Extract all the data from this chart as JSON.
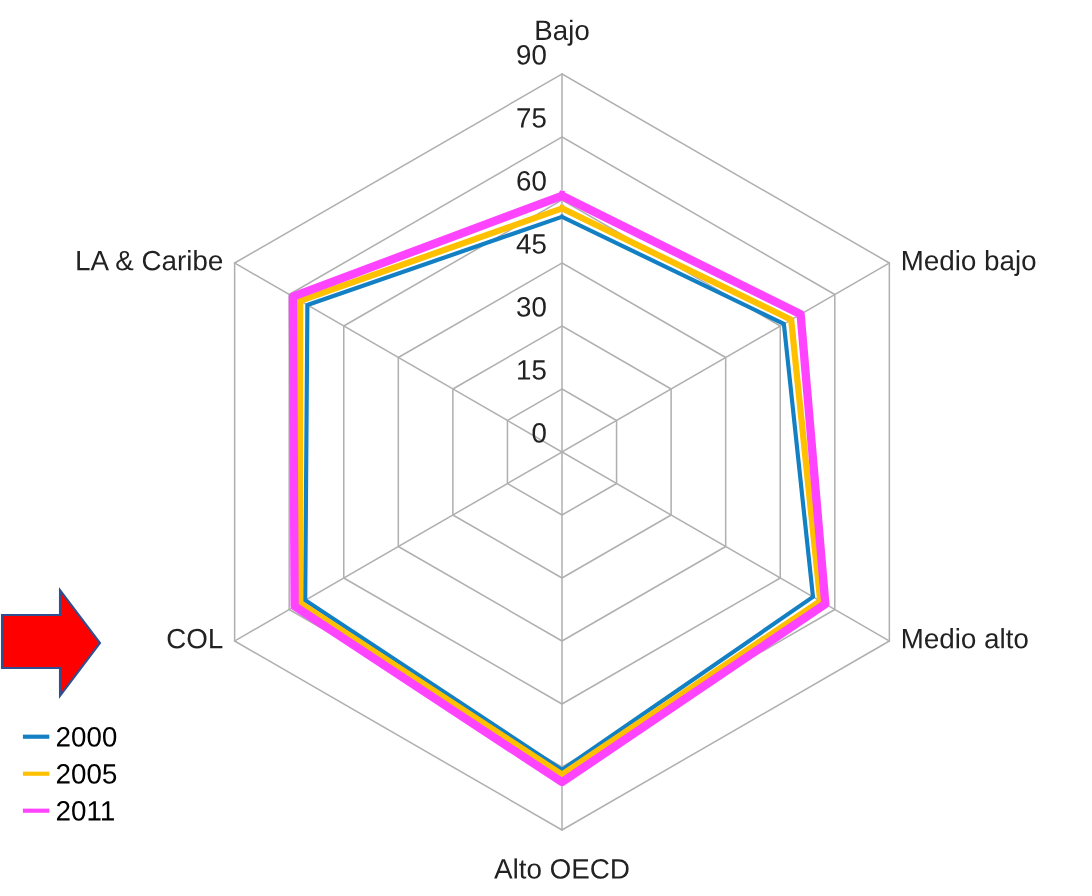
{
  "chart_data": {
    "type": "radar",
    "categories": [
      "Bajo",
      "Medio bajo",
      "Medio alto",
      "Alto OECD",
      "COL",
      "LA & Caribe"
    ],
    "ylim": [
      0,
      90
    ],
    "yticks": [
      0,
      15,
      30,
      45,
      60,
      75,
      90
    ],
    "grid": true,
    "legend": "bottom left",
    "marker": "none",
    "line_style": "solid",
    "series": [
      {
        "name": "2000",
        "color": "#1380c4",
        "values": [
          56,
          61,
          69,
          75.7,
          70.6,
          70
        ]
      },
      {
        "name": "2005",
        "color": "#ffc000",
        "values": [
          58,
          63,
          71,
          76.8,
          72,
          72
        ]
      },
      {
        "name": "2011",
        "color": "#ff44ff",
        "values": [
          61,
          65.6,
          72.4,
          78.6,
          73.5,
          74
        ]
      }
    ]
  }
}
